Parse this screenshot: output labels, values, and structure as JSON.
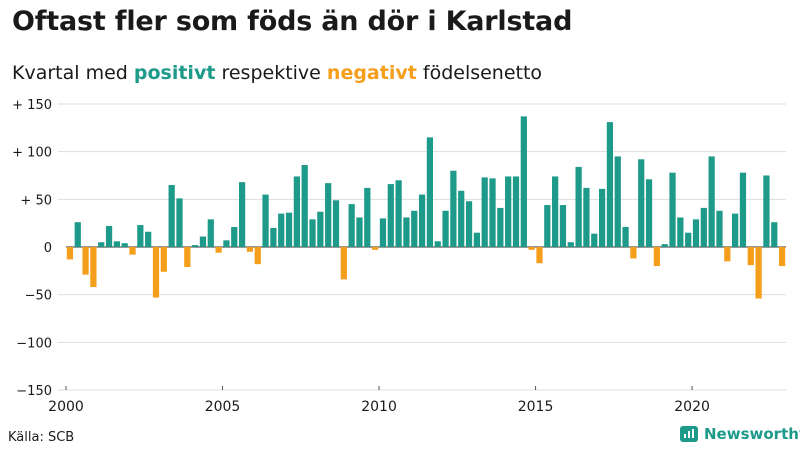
{
  "header": {
    "title": "Oftast fler som föds än dör i Karlstad",
    "subtitle_prefix": "Kvartal med",
    "subtitle_positive": "positivt",
    "subtitle_middle": "respektive",
    "subtitle_negative": "negativt",
    "subtitle_suffix": "födelsenetto"
  },
  "footer": {
    "source": "Källa: SCB",
    "brand": "Newsworthy"
  },
  "colors": {
    "positive": "#1d9a8a",
    "negative": "#f59e1b",
    "grid": "#dddddd",
    "text": "#1a1a1a"
  },
  "chart_data": {
    "type": "bar",
    "title": "Oftast fler som föds än dör i Karlstad",
    "subtitle": "Kvartal med positivt respektive negativt födelsenetto",
    "xlabel": "",
    "ylabel": "",
    "ylim": [
      -150,
      150
    ],
    "yticks": [
      150,
      100,
      50,
      0,
      -50,
      -100,
      -150
    ],
    "ytick_labels": [
      "+ 150",
      "+ 100",
      "+  50",
      "0",
      "−50",
      "−100",
      "−150"
    ],
    "xticks": [
      "2000",
      "2005",
      "2010",
      "2015",
      "2020"
    ],
    "x_start_year": 2000,
    "grid": true,
    "values": [
      -13,
      26,
      -29,
      -42,
      5,
      22,
      6,
      4,
      -8,
      23,
      16,
      -53,
      -26,
      65,
      51,
      -21,
      2,
      11,
      29,
      -6,
      7,
      21,
      68,
      -5,
      -18,
      55,
      20,
      35,
      36,
      74,
      86,
      29,
      37,
      67,
      49,
      -34,
      45,
      31,
      62,
      -3,
      30,
      66,
      70,
      31,
      38,
      55,
      115,
      6,
      38,
      80,
      59,
      48,
      15,
      73,
      72,
      41,
      74,
      74,
      137,
      -3,
      -17,
      44,
      74,
      44,
      5,
      84,
      62,
      14,
      61,
      131,
      95,
      21,
      -12,
      92,
      71,
      -20,
      3,
      78,
      31,
      15,
      29,
      41,
      95,
      38,
      -15,
      35,
      78,
      -19,
      -54,
      75,
      26,
      -20
    ]
  }
}
